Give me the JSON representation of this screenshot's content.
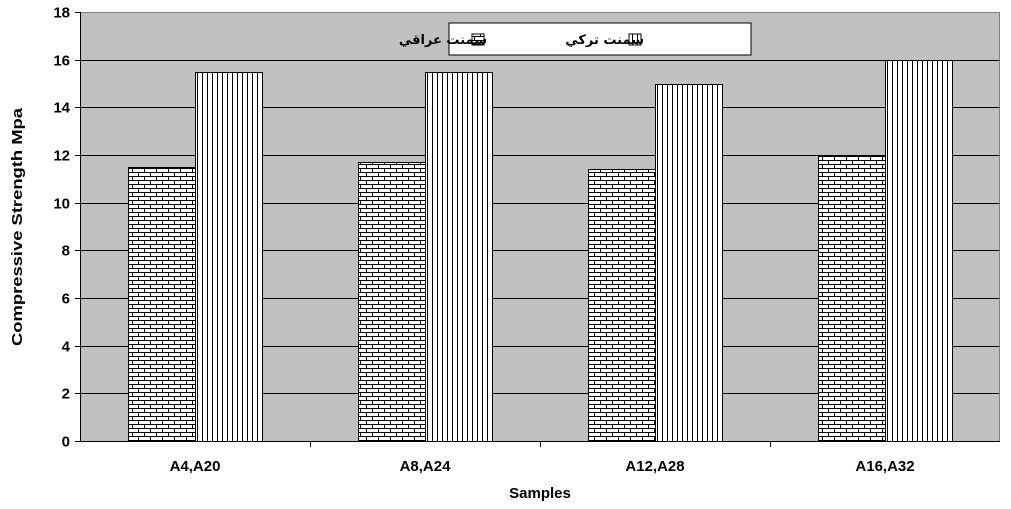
{
  "chart_data": {
    "type": "bar",
    "title": "",
    "xlabel": "Samples",
    "ylabel": "Compressive Strength Mpa",
    "ylim": [
      0,
      18
    ],
    "y_ticks": [
      0,
      2,
      4,
      6,
      8,
      10,
      12,
      14,
      16,
      18
    ],
    "categories": [
      "A4,A20",
      "A8,A24",
      "A12,A28",
      "A16,A32"
    ],
    "series": [
      {
        "name": "سمنت عراقي",
        "pattern": "brick",
        "values": [
          11.5,
          11.7,
          11.4,
          12.0
        ]
      },
      {
        "name": "سمنت تركي",
        "pattern": "vertical-lines",
        "values": [
          15.5,
          15.5,
          15.0,
          16.0
        ]
      }
    ],
    "grid": true,
    "legend_position": "top-right",
    "plot_background": "#c0c0c0",
    "bar_fill": "#ffffff",
    "bar_stroke": "#000000"
  }
}
